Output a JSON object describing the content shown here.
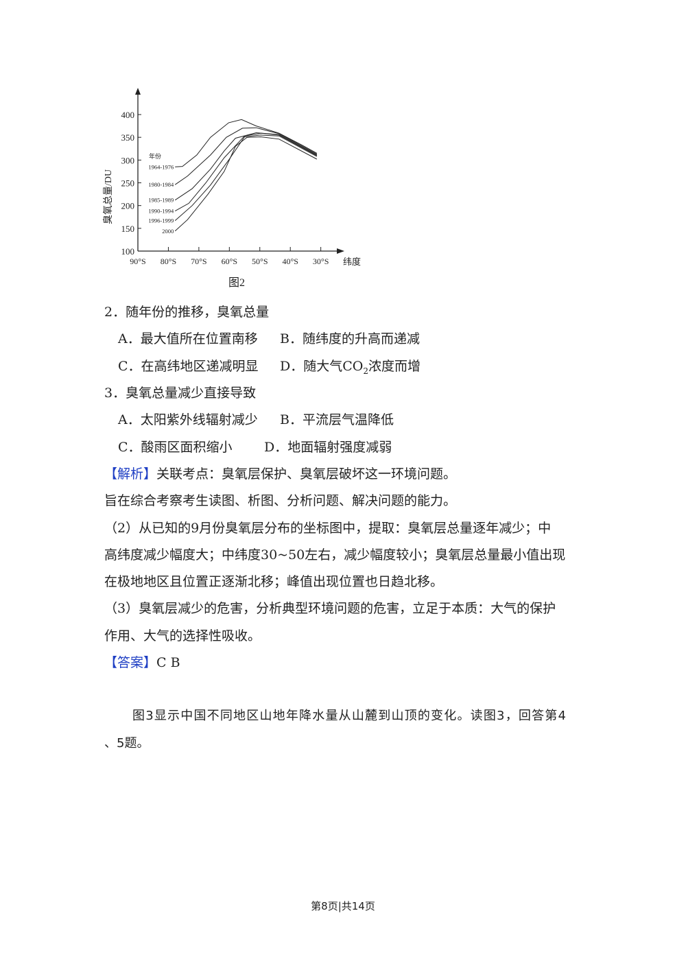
{
  "chart_data": {
    "type": "line",
    "caption": "图2",
    "ylabel": "臭氧总量/DU",
    "xlabel": "纬度",
    "ylim": [
      100,
      400
    ],
    "yticks": [
      "100",
      "150",
      "200",
      "250",
      "300",
      "350",
      "400"
    ],
    "xticks": [
      "90°S",
      "80°S",
      "70°S",
      "60°S",
      "50°S",
      "40°S",
      "30°S"
    ],
    "xlim_latitude_south": [
      90,
      30
    ],
    "legend_title": "年份",
    "series": [
      {
        "name": "1964-1976",
        "points": [
          [
            77.8,
            285
          ],
          [
            75.4,
            286
          ],
          [
            70.7,
            311
          ],
          [
            66.2,
            350
          ],
          [
            60.2,
            382
          ],
          [
            56,
            389
          ],
          [
            51.2,
            375
          ],
          [
            43.7,
            359
          ],
          [
            36.2,
            333
          ],
          [
            31.3,
            315
          ]
        ]
      },
      {
        "name": "1980-1984",
        "points": [
          [
            77.8,
            246
          ],
          [
            73.7,
            265
          ],
          [
            66.2,
            311
          ],
          [
            61,
            350
          ],
          [
            55.7,
            370
          ],
          [
            51.2,
            371
          ],
          [
            43.7,
            358
          ],
          [
            31.3,
            313
          ]
        ]
      },
      {
        "name": "1985-1989",
        "points": [
          [
            77.8,
            212
          ],
          [
            72.2,
            237
          ],
          [
            66.2,
            280
          ],
          [
            61.7,
            320
          ],
          [
            58,
            348
          ],
          [
            51.2,
            360
          ],
          [
            43.7,
            356
          ],
          [
            31.3,
            311
          ]
        ]
      },
      {
        "name": "1990-1994",
        "points": [
          [
            77.8,
            188
          ],
          [
            73.3,
            205
          ],
          [
            67.7,
            250
          ],
          [
            61.7,
            305
          ],
          [
            55,
            353
          ],
          [
            49.7,
            359
          ],
          [
            43.7,
            355
          ],
          [
            31.3,
            310
          ]
        ]
      },
      {
        "name": "1996-1999",
        "points": [
          [
            77.8,
            167
          ],
          [
            72.2,
            200
          ],
          [
            66.2,
            245
          ],
          [
            60.2,
            300
          ],
          [
            55,
            351
          ],
          [
            49.7,
            355
          ],
          [
            43.7,
            353
          ],
          [
            31.3,
            308
          ]
        ]
      },
      {
        "name": "2000",
        "points": [
          [
            77.8,
            144
          ],
          [
            73.7,
            169
          ],
          [
            67,
            225
          ],
          [
            61.7,
            275
          ],
          [
            58,
            330
          ],
          [
            54.2,
            350
          ],
          [
            49.7,
            351
          ],
          [
            43.7,
            346
          ],
          [
            31.3,
            302
          ]
        ]
      }
    ]
  },
  "q2": {
    "stem": "2．随年份的推移，臭氧总量",
    "a": "A．最大值所在位置南移",
    "b": "B．随纬度的升高而递减",
    "c": "C．在高纬地区递减明显",
    "d_pre": "D．随大气CO",
    "d_sub": "2",
    "d_post": "浓度而增"
  },
  "q3": {
    "stem": "3．臭氧总量减少直接导致",
    "a": "A．太阳紫外线辐射减少",
    "b": "B．平流层气温降低",
    "c": "C．酸雨区面积缩小",
    "d": "D．地面辐射强度减弱"
  },
  "analysis": {
    "tag": "【解析】",
    "lines": [
      "关联考点：臭氧层保护、臭氧层破坏这一环境问题。",
      "旨在综合考察考生读图、析图、分析问题、解决问题的能力。",
      "（2）从已知的9月份臭氧层分布的坐标图中，提取：臭氧层总量逐年减少；中",
      "高纬度减少幅度大；中纬度30~50左右，减少幅度较小；臭氧层总量最小值出现",
      "在极地地区且位置正逐渐北移；峰值出现位置也日趋北移。",
      "（3）臭氧层减少的危害，分析典型环境问题的危害，立足于本质：大气的保护",
      "作用、大气的选择性吸收。"
    ]
  },
  "answer": {
    "tag": "【答案】",
    "value": "C  B"
  },
  "intro": {
    "line1": "图3显示中国不同地区山地年降水量从山麓到山顶的变化。读图3，回答第4",
    "line2": "、5题。"
  },
  "footer": "第8页|共14页",
  "colors": {
    "accent": "#1f3fc4",
    "text": "#222222"
  }
}
